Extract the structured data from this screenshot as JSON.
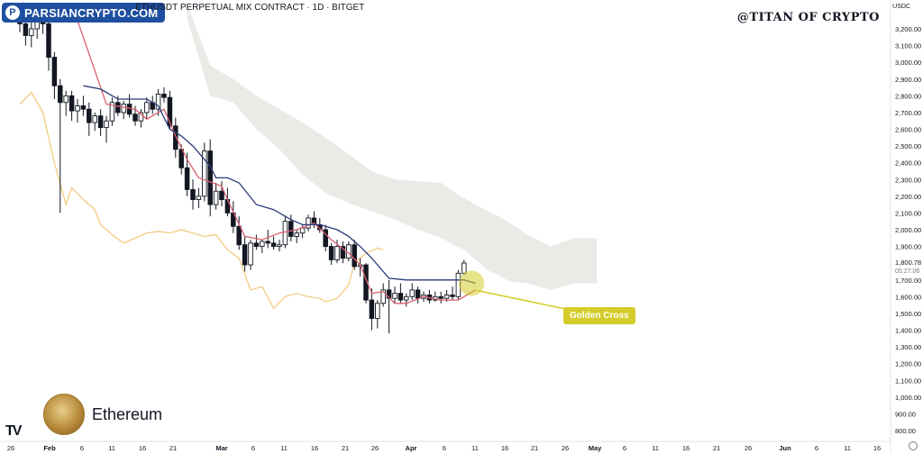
{
  "header": {
    "title": "ETHUSDT PERPETUAL MIX CONTRACT · 1D · BITGET",
    "watermark": "PARSIANCRYPTO.COM",
    "author": "@TITAN OF CRYPTO",
    "currency": "USDC"
  },
  "asset": {
    "name": "Ethereum"
  },
  "annotation": {
    "label": "Golden Cross"
  },
  "colors": {
    "up": "#ffffff",
    "down": "#131722",
    "conversion": "#d9606f",
    "base": "#2a3a7a",
    "lagging": "#f1c878",
    "cloud": "#d9d9d4",
    "callout": "#d4cc2a",
    "current_price": "#131722"
  },
  "chart_data": {
    "type": "candlestick",
    "indicator": "Ichimoku Cloud",
    "ylim": [
      700,
      3350
    ],
    "price_axis_ticks": [
      800,
      900,
      1000,
      1100,
      1200,
      1300,
      1400,
      1500,
      1600,
      1700,
      1800,
      1900,
      2000,
      2100,
      2200,
      2300,
      2400,
      2500,
      2600,
      2700,
      2800,
      2900,
      3000,
      3100,
      3200
    ],
    "current_price": "1,800.78",
    "countdown": "05:27:06",
    "x_ticks": [
      "26",
      "Feb",
      "6",
      "11",
      "16",
      "21",
      "Mar",
      "6",
      "11",
      "16",
      "21",
      "26",
      "Apr",
      "6",
      "11",
      "16",
      "21",
      "26",
      "May",
      "6",
      "11",
      "16",
      "21",
      "26",
      "Jun",
      "6",
      "11",
      "16"
    ],
    "candles": [
      [
        3280,
        3350,
        3180,
        3230
      ],
      [
        3230,
        3300,
        3100,
        3160
      ],
      [
        3160,
        3260,
        3090,
        3200
      ],
      [
        3200,
        3290,
        3140,
        3250
      ],
      [
        3250,
        3310,
        3170,
        3230
      ],
      [
        3230,
        3280,
        2950,
        3030
      ],
      [
        3030,
        3060,
        2780,
        2860
      ],
      [
        2860,
        2900,
        2100,
        2760
      ],
      [
        2760,
        2830,
        2680,
        2800
      ],
      [
        2800,
        2830,
        2650,
        2710
      ],
      [
        2710,
        2780,
        2640,
        2740
      ],
      [
        2740,
        2800,
        2680,
        2720
      ],
      [
        2720,
        2760,
        2560,
        2640
      ],
      [
        2640,
        2700,
        2590,
        2680
      ],
      [
        2680,
        2720,
        2560,
        2610
      ],
      [
        2610,
        2680,
        2520,
        2650
      ],
      [
        2650,
        2790,
        2620,
        2760
      ],
      [
        2760,
        2800,
        2680,
        2700
      ],
      [
        2700,
        2770,
        2660,
        2750
      ],
      [
        2750,
        2810,
        2670,
        2690
      ],
      [
        2690,
        2740,
        2620,
        2650
      ],
      [
        2650,
        2720,
        2610,
        2700
      ],
      [
        2700,
        2790,
        2660,
        2760
      ],
      [
        2760,
        2800,
        2690,
        2720
      ],
      [
        2720,
        2840,
        2680,
        2810
      ],
      [
        2810,
        2850,
        2760,
        2790
      ],
      [
        2790,
        2830,
        2600,
        2620
      ],
      [
        2620,
        2670,
        2430,
        2480
      ],
      [
        2480,
        2510,
        2330,
        2370
      ],
      [
        2370,
        2460,
        2200,
        2240
      ],
      [
        2240,
        2300,
        2120,
        2180
      ],
      [
        2180,
        2250,
        2130,
        2200
      ],
      [
        2200,
        2520,
        2170,
        2470
      ],
      [
        2470,
        2540,
        2080,
        2150
      ],
      [
        2150,
        2280,
        2120,
        2230
      ],
      [
        2230,
        2290,
        2140,
        2180
      ],
      [
        2180,
        2250,
        2080,
        2100
      ],
      [
        2100,
        2170,
        1980,
        2020
      ],
      [
        2020,
        2080,
        1880,
        1910
      ],
      [
        1910,
        1960,
        1750,
        1790
      ],
      [
        1790,
        1940,
        1760,
        1920
      ],
      [
        1920,
        1970,
        1880,
        1900
      ],
      [
        1900,
        1940,
        1860,
        1930
      ],
      [
        1930,
        2000,
        1890,
        1920
      ],
      [
        1920,
        1960,
        1880,
        1900
      ],
      [
        1900,
        1940,
        1870,
        1910
      ],
      [
        1910,
        2080,
        1890,
        2050
      ],
      [
        2050,
        2090,
        1930,
        1960
      ],
      [
        1960,
        2000,
        1920,
        1980
      ],
      [
        1980,
        2030,
        1950,
        2010
      ],
      [
        2010,
        2090,
        1990,
        2070
      ],
      [
        2070,
        2110,
        2010,
        2030
      ],
      [
        2030,
        2070,
        1980,
        2000
      ],
      [
        2000,
        2030,
        1870,
        1900
      ],
      [
        1900,
        1920,
        1790,
        1820
      ],
      [
        1820,
        1940,
        1800,
        1900
      ],
      [
        1900,
        1930,
        1800,
        1830
      ],
      [
        1830,
        1930,
        1810,
        1910
      ],
      [
        1910,
        1940,
        1760,
        1780
      ],
      [
        1780,
        1830,
        1720,
        1790
      ],
      [
        1790,
        1800,
        1560,
        1580
      ],
      [
        1580,
        1650,
        1400,
        1470
      ],
      [
        1470,
        1580,
        1410,
        1560
      ],
      [
        1560,
        1680,
        1540,
        1640
      ],
      [
        1640,
        1700,
        1380,
        1590
      ],
      [
        1590,
        1660,
        1560,
        1620
      ],
      [
        1620,
        1680,
        1560,
        1580
      ],
      [
        1580,
        1620,
        1540,
        1600
      ],
      [
        1600,
        1680,
        1580,
        1640
      ],
      [
        1640,
        1660,
        1560,
        1590
      ],
      [
        1590,
        1630,
        1570,
        1610
      ],
      [
        1610,
        1640,
        1560,
        1580
      ],
      [
        1580,
        1630,
        1570,
        1600
      ],
      [
        1600,
        1630,
        1560,
        1590
      ],
      [
        1590,
        1640,
        1570,
        1610
      ],
      [
        1610,
        1660,
        1580,
        1600
      ],
      [
        1600,
        1760,
        1580,
        1740
      ],
      [
        1740,
        1820,
        1730,
        1801
      ]
    ],
    "conversion_line": [
      [
        10,
        3250
      ],
      [
        15,
        2750
      ],
      [
        20,
        2720
      ],
      [
        22,
        2660
      ],
      [
        25,
        2720
      ],
      [
        27,
        2560
      ],
      [
        29,
        2420
      ],
      [
        31,
        2310
      ],
      [
        35,
        2260
      ],
      [
        36,
        2180
      ],
      [
        39,
        1960
      ],
      [
        42,
        1940
      ],
      [
        45,
        1980
      ],
      [
        48,
        2000
      ],
      [
        51,
        2040
      ],
      [
        54,
        1940
      ],
      [
        57,
        1860
      ],
      [
        59,
        1790
      ],
      [
        61,
        1620
      ],
      [
        63,
        1630
      ],
      [
        65,
        1560
      ],
      [
        67,
        1560
      ],
      [
        70,
        1600
      ],
      [
        73,
        1580
      ],
      [
        76,
        1580
      ],
      [
        79,
        1640
      ]
    ],
    "base_line": [
      [
        11,
        2860
      ],
      [
        14,
        2840
      ],
      [
        17,
        2780
      ],
      [
        22,
        2780
      ],
      [
        24,
        2740
      ],
      [
        26,
        2600
      ],
      [
        28,
        2560
      ],
      [
        30,
        2500
      ],
      [
        33,
        2380
      ],
      [
        34,
        2310
      ],
      [
        36,
        2310
      ],
      [
        38,
        2280
      ],
      [
        41,
        2150
      ],
      [
        44,
        2120
      ],
      [
        47,
        2060
      ],
      [
        49,
        2030
      ],
      [
        52,
        2030
      ],
      [
        55,
        2000
      ],
      [
        57,
        1960
      ],
      [
        59,
        1900
      ],
      [
        61,
        1830
      ],
      [
        64,
        1710
      ],
      [
        67,
        1700
      ],
      [
        70,
        1700
      ],
      [
        74,
        1700
      ],
      [
        77,
        1700
      ],
      [
        79,
        1680
      ]
    ],
    "lagging_span": [
      [
        0,
        2750
      ],
      [
        2,
        2820
      ],
      [
        4,
        2700
      ],
      [
        6,
        2400
      ],
      [
        8,
        2150
      ],
      [
        9,
        2250
      ],
      [
        11,
        2180
      ],
      [
        13,
        2120
      ],
      [
        14,
        2030
      ],
      [
        16,
        1970
      ],
      [
        18,
        1920
      ],
      [
        20,
        1950
      ],
      [
        22,
        1980
      ],
      [
        24,
        1990
      ],
      [
        26,
        1980
      ],
      [
        28,
        2000
      ],
      [
        30,
        1980
      ],
      [
        32,
        1960
      ],
      [
        34,
        1970
      ],
      [
        36,
        1880
      ],
      [
        38,
        1830
      ],
      [
        40,
        1640
      ],
      [
        42,
        1660
      ],
      [
        44,
        1530
      ],
      [
        46,
        1600
      ],
      [
        48,
        1620
      ],
      [
        50,
        1600
      ],
      [
        52,
        1590
      ],
      [
        53,
        1570
      ],
      [
        55,
        1590
      ],
      [
        57,
        1670
      ],
      [
        58,
        1800
      ],
      [
        60,
        1860
      ],
      [
        62,
        1890
      ],
      [
        63,
        1880
      ]
    ],
    "cloud_upper": [
      [
        29,
        3350
      ],
      [
        33,
        2980
      ],
      [
        37,
        2900
      ],
      [
        41,
        2800
      ],
      [
        45,
        2720
      ],
      [
        49,
        2640
      ],
      [
        53,
        2550
      ],
      [
        57,
        2450
      ],
      [
        61,
        2350
      ],
      [
        65,
        2300
      ],
      [
        69,
        2290
      ],
      [
        73,
        2280
      ],
      [
        76,
        2210
      ],
      [
        80,
        2130
      ],
      [
        84,
        2060
      ],
      [
        88,
        1970
      ],
      [
        92,
        1900
      ],
      [
        96,
        1950
      ],
      [
        100,
        1950
      ]
    ],
    "cloud_lower": [
      [
        29,
        3260
      ],
      [
        33,
        2800
      ],
      [
        37,
        2760
      ],
      [
        41,
        2600
      ],
      [
        45,
        2480
      ],
      [
        49,
        2330
      ],
      [
        53,
        2220
      ],
      [
        57,
        2160
      ],
      [
        61,
        2110
      ],
      [
        65,
        2060
      ],
      [
        69,
        2000
      ],
      [
        73,
        1950
      ],
      [
        77,
        1880
      ],
      [
        81,
        1760
      ],
      [
        85,
        1690
      ],
      [
        88,
        1680
      ],
      [
        92,
        1640
      ],
      [
        96,
        1680
      ],
      [
        100,
        1680
      ]
    ]
  }
}
